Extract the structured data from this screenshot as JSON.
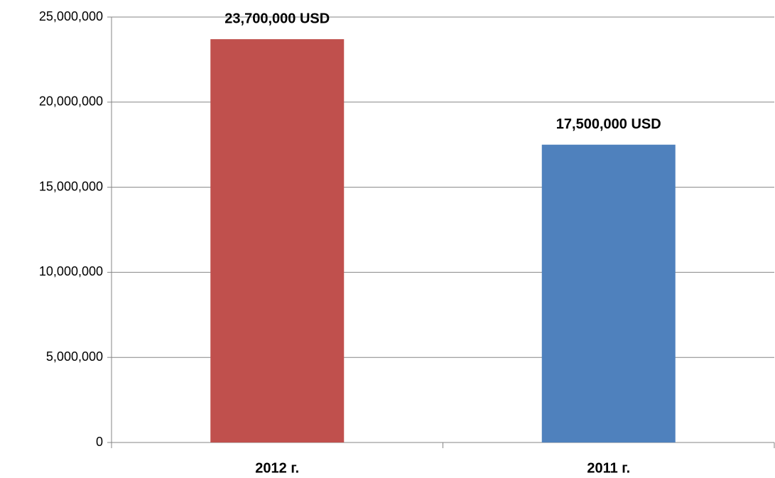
{
  "chart_data": {
    "type": "bar",
    "categories": [
      "2012 г.",
      "2011 г."
    ],
    "values": [
      23700000,
      17500000
    ],
    "value_labels": [
      "23,700,000 USD",
      "17,500,000 USD"
    ],
    "colors": [
      "#c0504d",
      "#4f81bd"
    ],
    "ylim": [
      0,
      25000000
    ],
    "yticks": [
      0,
      {
        "value": 5000000,
        "label": "5,000,000"
      },
      {
        "value": 10000000,
        "label": "10,000,000"
      },
      {
        "value": 15000000,
        "label": "15,000,000"
      },
      {
        "value": 20000000,
        "label": "20,000,000"
      },
      {
        "value": 25000000,
        "label": "25,000,000"
      }
    ],
    "grid": true
  }
}
